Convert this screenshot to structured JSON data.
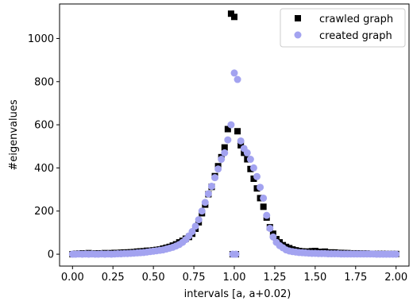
{
  "chart_data": {
    "type": "scatter",
    "xlabel": "intervals [a, a+0.02)",
    "ylabel": "#eigenvalues",
    "xlim": [
      -0.08,
      2.08
    ],
    "ylim": [
      -55,
      1160
    ],
    "xticks": [
      0.0,
      0.25,
      0.5,
      0.75,
      1.0,
      1.25,
      1.5,
      1.75,
      2.0
    ],
    "xtick_labels": [
      "0.00",
      "0.25",
      "0.50",
      "0.75",
      "1.00",
      "1.25",
      "1.50",
      "1.75",
      "2.00"
    ],
    "yticks": [
      0,
      200,
      400,
      600,
      800,
      1000
    ],
    "ytick_labels": [
      "0",
      "200",
      "400",
      "600",
      "800",
      "1000"
    ],
    "grid": false,
    "legend_position": "top-right",
    "series": [
      {
        "name": "crawled graph",
        "marker": "square",
        "color": "#000000",
        "x": [
          0.0,
          0.02,
          0.04,
          0.06,
          0.08,
          0.1,
          0.12,
          0.14,
          0.16,
          0.18,
          0.2,
          0.22,
          0.24,
          0.26,
          0.28,
          0.3,
          0.32,
          0.34,
          0.36,
          0.38,
          0.4,
          0.42,
          0.44,
          0.46,
          0.48,
          0.5,
          0.52,
          0.54,
          0.56,
          0.58,
          0.6,
          0.62,
          0.64,
          0.66,
          0.68,
          0.7,
          0.72,
          0.74,
          0.76,
          0.78,
          0.8,
          0.82,
          0.84,
          0.86,
          0.88,
          0.9,
          0.92,
          0.94,
          0.96,
          0.98,
          1.0,
          1.02,
          1.04,
          1.06,
          1.08,
          1.1,
          1.12,
          1.14,
          1.16,
          1.18,
          1.2,
          1.22,
          1.24,
          1.26,
          1.28,
          1.3,
          1.32,
          1.34,
          1.36,
          1.38,
          1.4,
          1.42,
          1.44,
          1.46,
          1.48,
          1.5,
          1.52,
          1.54,
          1.56,
          1.58,
          1.6,
          1.62,
          1.64,
          1.66,
          1.68,
          1.7,
          1.72,
          1.74,
          1.76,
          1.78,
          1.8,
          1.82,
          1.84,
          1.86,
          1.88,
          1.9,
          1.92,
          1.94,
          1.96,
          1.98,
          2.0,
          0.99,
          1.01
        ],
        "y": [
          0,
          2,
          3,
          4,
          2,
          5,
          3,
          3,
          4,
          4,
          5,
          4,
          5,
          6,
          5,
          7,
          8,
          8,
          9,
          10,
          12,
          13,
          14,
          16,
          16,
          18,
          20,
          22,
          26,
          30,
          34,
          40,
          46,
          55,
          62,
          72,
          80,
          95,
          118,
          148,
          190,
          230,
          278,
          312,
          362,
          408,
          450,
          495,
          580,
          1115,
          1100,
          570,
          505,
          470,
          440,
          395,
          350,
          305,
          260,
          220,
          170,
          125,
          95,
          70,
          55,
          42,
          34,
          28,
          22,
          18,
          15,
          13,
          12,
          12,
          14,
          15,
          11,
          10,
          12,
          8,
          8,
          8,
          6,
          6,
          5,
          5,
          4,
          4,
          4,
          3,
          3,
          3,
          2,
          2,
          2,
          2,
          2,
          1,
          1,
          1,
          1,
          0,
          0
        ],
        "y_note_removed": true
      },
      {
        "name": "created graph",
        "marker": "circle",
        "color": "#a3a3f0",
        "x": [
          0.0,
          0.02,
          0.04,
          0.06,
          0.08,
          0.1,
          0.12,
          0.14,
          0.16,
          0.18,
          0.2,
          0.22,
          0.24,
          0.26,
          0.28,
          0.3,
          0.32,
          0.34,
          0.36,
          0.38,
          0.4,
          0.42,
          0.44,
          0.46,
          0.48,
          0.5,
          0.52,
          0.54,
          0.56,
          0.58,
          0.6,
          0.62,
          0.64,
          0.66,
          0.68,
          0.7,
          0.72,
          0.74,
          0.76,
          0.78,
          0.8,
          0.82,
          0.84,
          0.86,
          0.88,
          0.9,
          0.92,
          0.94,
          0.96,
          0.98,
          1.0,
          1.02,
          1.04,
          1.06,
          1.08,
          1.1,
          1.12,
          1.14,
          1.16,
          1.18,
          1.2,
          1.22,
          1.24,
          1.26,
          1.28,
          1.3,
          1.32,
          1.34,
          1.36,
          1.38,
          1.4,
          1.42,
          1.44,
          1.46,
          1.48,
          1.5,
          1.52,
          1.54,
          1.56,
          1.58,
          1.6,
          1.62,
          1.64,
          1.66,
          1.68,
          1.7,
          1.72,
          1.74,
          1.76,
          1.78,
          1.8,
          1.82,
          1.84,
          1.86,
          1.88,
          1.9,
          1.92,
          1.94,
          1.96,
          1.98,
          2.0,
          0.99,
          1.01
        ],
        "y": [
          0,
          0,
          1,
          0,
          1,
          0,
          1,
          0,
          0,
          1,
          0,
          1,
          0,
          1,
          2,
          2,
          3,
          3,
          4,
          5,
          6,
          7,
          8,
          10,
          12,
          14,
          16,
          18,
          20,
          24,
          28,
          32,
          38,
          45,
          55,
          68,
          85,
          105,
          130,
          160,
          200,
          240,
          280,
          315,
          355,
          395,
          440,
          470,
          530,
          600,
          840,
          810,
          525,
          490,
          470,
          440,
          400,
          360,
          310,
          260,
          180,
          120,
          80,
          55,
          40,
          30,
          20,
          15,
          12,
          10,
          8,
          7,
          6,
          5,
          4,
          4,
          3,
          3,
          3,
          2,
          2,
          2,
          2,
          1,
          1,
          1,
          1,
          1,
          1,
          1,
          1,
          1,
          1,
          1,
          0,
          0,
          0,
          0,
          0,
          0,
          0,
          0,
          0
        ]
      }
    ]
  }
}
